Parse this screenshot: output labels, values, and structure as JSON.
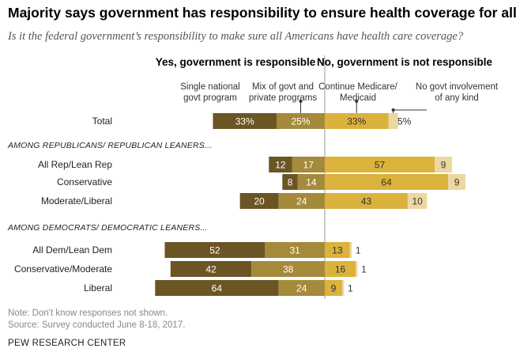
{
  "header": {
    "title": "Majority says government has responsibility to ensure health coverage for all",
    "subtitle": "Is it the federal government’s responsibility to make sure all Americans have health care coverage?"
  },
  "chart_data": {
    "type": "bar",
    "orientation": "horizontal",
    "stacked": "diverging",
    "group_headers": {
      "yes": "Yes, government is responsible",
      "no": "No, government is not responsible"
    },
    "series": [
      {
        "name": "Single national govt program",
        "side": "yes",
        "color": "#6b5524"
      },
      {
        "name": "Mix of govt and private programs",
        "side": "yes",
        "color": "#a58a3c"
      },
      {
        "name": "Continue Medicare/ Medicaid",
        "side": "no",
        "color": "#dbb23c"
      },
      {
        "name": "No govt involvement of any kind",
        "side": "no",
        "color": "#ecd8a0"
      }
    ],
    "legend_labels": [
      [
        "Single national",
        "govt program"
      ],
      [
        "Mix of govt and",
        "private programs"
      ],
      [
        "Continue Medicare/",
        "Medicaid"
      ],
      [
        "No govt involvement",
        "of any kind"
      ]
    ],
    "rows": [
      {
        "kind": "row",
        "label": "Total",
        "values": [
          33,
          25,
          33,
          5
        ],
        "value_labels": [
          "33%",
          "25%",
          "33%",
          "5%"
        ]
      },
      {
        "kind": "section",
        "label": "AMONG REPUBLICANS/ REPUBLICAN LEANERS..."
      },
      {
        "kind": "row",
        "label": "All Rep/Lean Rep",
        "values": [
          12,
          17,
          57,
          9
        ],
        "value_labels": [
          "12",
          "17",
          "57",
          "9"
        ]
      },
      {
        "kind": "row",
        "label": "Conservative",
        "values": [
          8,
          14,
          64,
          9
        ],
        "value_labels": [
          "8",
          "14",
          "64",
          "9"
        ]
      },
      {
        "kind": "row",
        "label": "Moderate/Liberal",
        "values": [
          20,
          24,
          43,
          10
        ],
        "value_labels": [
          "20",
          "24",
          "43",
          "10"
        ]
      },
      {
        "kind": "section",
        "label": "AMONG DEMOCRATS/ DEMOCRATIC LEANERS..."
      },
      {
        "kind": "row",
        "label": "All Dem/Lean Dem",
        "values": [
          52,
          31,
          13,
          1
        ],
        "value_labels": [
          "52",
          "31",
          "13",
          "1"
        ]
      },
      {
        "kind": "row",
        "label": "Conservative/Moderate",
        "values": [
          42,
          38,
          16,
          1
        ],
        "value_labels": [
          "42",
          "38",
          "16",
          "1"
        ]
      },
      {
        "kind": "row",
        "label": "Liberal",
        "values": [
          64,
          24,
          9,
          1
        ],
        "value_labels": [
          "64",
          "24",
          "9",
          "1"
        ]
      }
    ]
  },
  "footer": {
    "note": "Note: Don't know responses not shown.",
    "source": "Source: Survey conducted June 8-18, 2017.",
    "credit": "PEW RESEARCH CENTER"
  }
}
